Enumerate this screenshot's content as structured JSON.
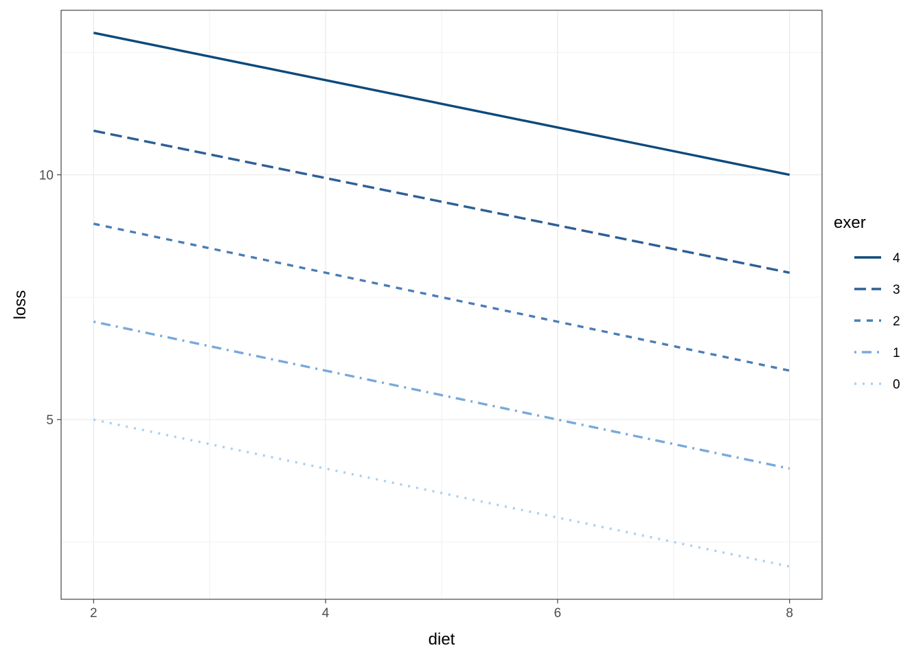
{
  "chart_data": {
    "type": "line",
    "xlabel": "diet",
    "ylabel": "loss",
    "xlim": [
      1.72,
      8.28
    ],
    "ylim": [
      1.33,
      13.36
    ],
    "x_ticks": [
      2,
      4,
      6,
      8
    ],
    "y_ticks": [
      5,
      10
    ],
    "grid": true,
    "legend": {
      "title": "exer",
      "placement": "right",
      "order": [
        "4",
        "3",
        "2",
        "1",
        "0"
      ]
    },
    "series": [
      {
        "name": "4",
        "color": "#0b4a7d",
        "dash": "solid",
        "x": [
          2,
          8
        ],
        "y": [
          12.9,
          10.0
        ]
      },
      {
        "name": "3",
        "color": "#2e5f96",
        "dash": "longdash",
        "x": [
          2,
          8
        ],
        "y": [
          10.9,
          8.0
        ]
      },
      {
        "name": "2",
        "color": "#4a7db6",
        "dash": "dashed",
        "x": [
          2,
          8
        ],
        "y": [
          9.0,
          6.0
        ]
      },
      {
        "name": "1",
        "color": "#78a9da",
        "dash": "dotdash",
        "x": [
          2,
          8
        ],
        "y": [
          7.0,
          4.0
        ]
      },
      {
        "name": "0",
        "color": "#a8d0f3",
        "dash": "dotted",
        "x": [
          2,
          8
        ],
        "y": [
          5.0,
          2.0
        ]
      }
    ]
  }
}
